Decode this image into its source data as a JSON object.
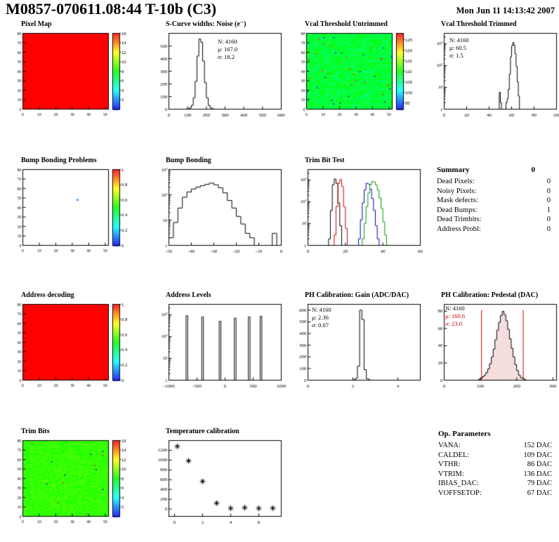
{
  "header": {
    "title": "M0857-070611.08:44 T-10b (C3)",
    "date": "Mon Jun 11 14:13:42 2007"
  },
  "summary": {
    "title": "Summary",
    "grade": "0",
    "rows": [
      {
        "label": "Dead Pixels:",
        "value": "0"
      },
      {
        "label": "Noisy Pixels:",
        "value": "0"
      },
      {
        "label": "Mask defects:",
        "value": "0"
      },
      {
        "label": "Dead Bumps:",
        "value": "1"
      },
      {
        "label": "Dead Trimbits:",
        "value": "0"
      },
      {
        "label": "Address Probl:",
        "value": "0"
      }
    ]
  },
  "op_parameters": {
    "title": "Op. Parameters",
    "rows": [
      {
        "label": "VANA:",
        "value": "152 DAC"
      },
      {
        "label": "CALDEL:",
        "value": "109 DAC"
      },
      {
        "label": "VTHR:",
        "value": "86 DAC"
      },
      {
        "label": "VTRIM:",
        "value": "136 DAC"
      },
      {
        "label": "IBIAS_DAC:",
        "value": "79 DAC"
      },
      {
        "label": "VOFFSETOP:",
        "value": "67 DAC"
      }
    ]
  },
  "chart_data": [
    {
      "id": "pixel_map",
      "title": "Pixel Map",
      "type": "heatmap",
      "xlim": [
        0,
        52
      ],
      "ylim": [
        0,
        80
      ],
      "xticks": [
        0,
        10,
        20,
        30,
        40,
        50
      ],
      "yticks": [
        0,
        10,
        20,
        30,
        40,
        50,
        60,
        70,
        80
      ],
      "heatmap": {
        "mode": "uniform",
        "value": 1
      },
      "colorbar": {
        "min": 0,
        "max": 16,
        "ticks": [
          2,
          4,
          6,
          8,
          10,
          12,
          14,
          16
        ]
      }
    },
    {
      "id": "scurve_noise",
      "title": "S-Curve widths: Noise (e⁻)",
      "type": "hist",
      "xlim": [
        0,
        600
      ],
      "xticks": [
        0,
        100,
        200,
        300,
        400,
        500,
        600
      ],
      "ylim": [
        0,
        600
      ],
      "yticks": [
        0,
        100,
        200,
        300,
        400,
        500
      ],
      "bins": {
        "start": 90,
        "step": 10,
        "counts": [
          1,
          3,
          10,
          30,
          90,
          220,
          420,
          555,
          530,
          380,
          210,
          90,
          30,
          10,
          3,
          1
        ]
      },
      "stats": {
        "n": "N: 4160",
        "mu": "μ: 167.0",
        "sigma": "σ: 18.2"
      }
    },
    {
      "id": "vcal_untrimmed",
      "title": "Vcal Threshold Untrimmed",
      "type": "heatmap",
      "xlim": [
        0,
        52
      ],
      "ylim": [
        0,
        80
      ],
      "xticks": [
        0,
        10,
        20,
        30,
        40,
        50
      ],
      "yticks": [
        0,
        10,
        20,
        30,
        40,
        50,
        60,
        70,
        80
      ],
      "heatmap": {
        "mode": "noise",
        "base": 0.45,
        "spread": 0.12,
        "outlier_rate": 0.008,
        "seed": 7
      },
      "colorbar": {
        "min": 92,
        "max": 128,
        "ticks": [
          95,
          100,
          105,
          110,
          115,
          120,
          125
        ]
      }
    },
    {
      "id": "vcal_trimmed",
      "title": "Vcal Threshold Trimmed",
      "type": "hist",
      "ylog": true,
      "ymin": 1,
      "ymax": 3000,
      "xlim": [
        0,
        100
      ],
      "xticks": [
        0,
        20,
        40,
        60,
        80,
        100
      ],
      "bins": {
        "start": 48,
        "step": 1,
        "counts": [
          0,
          6,
          2,
          0,
          0,
          0,
          0,
          2,
          3,
          8,
          40,
          250,
          800,
          1150,
          850,
          350,
          90,
          18,
          4,
          0
        ]
      },
      "stats": {
        "n": "N: 4160",
        "mu": "μ: 60.5",
        "sigma": "σ: 1.5"
      }
    },
    {
      "id": "bump_problems",
      "title": "Bump Bonding Problems",
      "type": "heatmap",
      "xlim": [
        0,
        52
      ],
      "ylim": [
        0,
        80
      ],
      "xticks": [
        0,
        10,
        20,
        30,
        40,
        50
      ],
      "yticks": [
        0,
        10,
        20,
        30,
        40,
        50,
        60,
        70,
        80
      ],
      "heatmap": {
        "mode": "sparse",
        "dots": [
          [
            33,
            48,
            0.12
          ]
        ]
      },
      "colorbar": {
        "min": 0,
        "max": 1,
        "ticks": [
          0,
          0.2,
          0.4,
          0.6,
          0.8,
          1
        ]
      }
    },
    {
      "id": "bump_bonding",
      "title": "Bump Bonding",
      "type": "hist",
      "ylog": true,
      "ymin": 1,
      "ymax": 1000,
      "xlim": [
        -50,
        0
      ],
      "xticks": [
        -50,
        -40,
        -30,
        -20,
        -10,
        0
      ],
      "bins": {
        "start": -50,
        "step": 2,
        "counts": [
          2,
          8,
          30,
          80,
          130,
          170,
          200,
          230,
          260,
          290,
          250,
          190,
          120,
          60,
          30,
          14,
          7,
          3,
          2,
          1,
          0,
          0,
          0,
          3,
          0
        ]
      }
    },
    {
      "id": "trim_bit_test",
      "title": "Trim Bit Test",
      "type": "multihist",
      "ylog": true,
      "ymin": 1,
      "ymax": 3000,
      "xlim": [
        0,
        60
      ],
      "xticks": [
        0,
        20,
        40,
        60
      ],
      "series": [
        {
          "name": "trim-bit-0",
          "color": "#000000",
          "bins": {
            "start": 11,
            "step": 1,
            "counts": [
              2,
              40,
              600,
              1100,
              700,
              90,
              8
            ]
          }
        },
        {
          "name": "trim-bit-1",
          "color": "#cc0000",
          "bins": {
            "start": 14,
            "step": 1,
            "counts": [
              3,
              60,
              700,
              1050,
              500,
              60,
              6
            ]
          }
        },
        {
          "name": "trim-bit-2",
          "color": "#0000bb",
          "bins": {
            "start": 27,
            "step": 1,
            "counts": [
              2,
              15,
              90,
              350,
              700,
              650,
              380,
              140,
              40,
              8,
              2
            ]
          }
        },
        {
          "name": "trim-bit-3",
          "color": "#009900",
          "bins": {
            "start": 29,
            "step": 1,
            "counts": [
              2,
              10,
              60,
              250,
              600,
              850,
              800,
              600,
              350,
              150,
              50,
              12,
              3
            ]
          }
        }
      ]
    },
    {
      "id": "address_decoding",
      "title": "Address decoding",
      "type": "heatmap",
      "xlim": [
        0,
        52
      ],
      "ylim": [
        0,
        80
      ],
      "xticks": [
        0,
        10,
        20,
        30,
        40,
        50
      ],
      "yticks": [
        0,
        10,
        20,
        30,
        40,
        50,
        60,
        70,
        80
      ],
      "heatmap": {
        "mode": "uniform",
        "value": 1
      },
      "colorbar": {
        "min": 0,
        "max": 1,
        "ticks": [
          0,
          0.2,
          0.4,
          0.6,
          0.8,
          1
        ]
      }
    },
    {
      "id": "address_levels",
      "title": "Address Levels",
      "type": "peaks",
      "ylog": true,
      "ymin": 1,
      "ymax": 3000,
      "xlim": [
        -1000,
        1000
      ],
      "xticks": [
        -1000,
        -500,
        0,
        500,
        1000
      ],
      "peak_width": 30,
      "peaks": [
        [
          -680,
          900
        ],
        [
          -400,
          800
        ],
        [
          -90,
          500
        ],
        [
          180,
          700
        ],
        [
          430,
          800
        ],
        [
          640,
          850
        ]
      ]
    },
    {
      "id": "ph_gain",
      "title": "PH Calibration: Gain (ADC/DAC)",
      "type": "hist",
      "xlim": [
        0,
        5
      ],
      "xticks": [
        0,
        2,
        4
      ],
      "ylim": [
        0,
        650
      ],
      "yticks": [
        0,
        100,
        200,
        300,
        400,
        500,
        600
      ],
      "bins": {
        "start": 2.0,
        "step": 0.1,
        "counts": [
          3,
          15,
          120,
          600,
          520,
          90,
          12,
          2
        ]
      },
      "stats": {
        "n": "N: 4160",
        "mu": "μ: 2.36",
        "sigma": "σ: 0.07"
      }
    },
    {
      "id": "ph_pedestal",
      "title": "PH Calibration: Pedestal (DAC)",
      "type": "hist",
      "xlim": [
        0,
        310
      ],
      "xticks": [
        0,
        100,
        200,
        300
      ],
      "ylim": [
        0,
        88
      ],
      "yticks": [
        0,
        20,
        40,
        60,
        80
      ],
      "fill": "hatch",
      "bins": {
        "start": 95,
        "step": 5,
        "counts": [
          1,
          2,
          4,
          6,
          9,
          13,
          19,
          27,
          36,
          47,
          58,
          67,
          75,
          80,
          76,
          69,
          59,
          48,
          37,
          27,
          18,
          11,
          6,
          3,
          2,
          1
        ]
      },
      "vlines": [
        {
          "x": 103,
          "color": "#cc0000"
        },
        {
          "x": 218,
          "color": "#cc0000"
        }
      ],
      "stats": {
        "n": "N: 4160",
        "mu": "μ: 160.6",
        "sigma": "σ: 23.0"
      }
    },
    {
      "id": "trim_bits",
      "title": "Trim Bits",
      "type": "heatmap",
      "xlim": [
        0,
        52
      ],
      "ylim": [
        0,
        80
      ],
      "xticks": [
        0,
        10,
        20,
        30,
        40,
        50
      ],
      "yticks": [
        0,
        10,
        20,
        30,
        40,
        50,
        60,
        70,
        80
      ],
      "heatmap": {
        "mode": "noise",
        "base": 0.55,
        "spread": 0.05,
        "outlier_rate": 0.004,
        "seed": 13
      },
      "colorbar": {
        "min": 0,
        "max": 16,
        "ticks": [
          2,
          4,
          6,
          8,
          10,
          12,
          14,
          16
        ]
      }
    },
    {
      "id": "temperature_calibration",
      "title": "Temperature calibration",
      "type": "scatter",
      "xlim": [
        -0.4,
        7.6
      ],
      "xticks": [
        0,
        2,
        4,
        6
      ],
      "ylim": [
        -150,
        1400
      ],
      "yticks": [
        0,
        200,
        400,
        600,
        800,
        1000,
        1200
      ],
      "points": [
        [
          0.2,
          1280
        ],
        [
          1,
          985
        ],
        [
          2,
          565
        ],
        [
          3,
          120
        ],
        [
          4,
          15
        ],
        [
          5,
          28
        ],
        [
          6,
          15
        ],
        [
          7,
          18
        ]
      ]
    }
  ]
}
